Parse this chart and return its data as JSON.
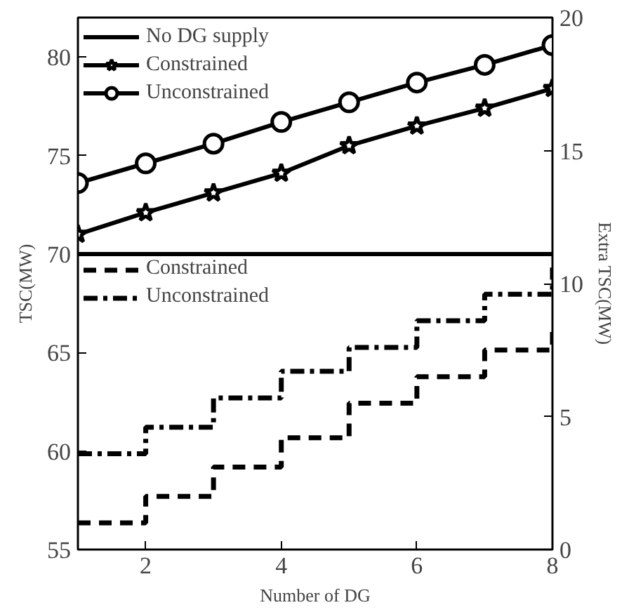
{
  "chart_data": {
    "type": "line",
    "xlabel": "Number of DG",
    "ylabel": "TSC(MW)",
    "y2label": "Extra TSC(MW)",
    "x": [
      1,
      2,
      3,
      4,
      5,
      6,
      7,
      8
    ],
    "xlim": [
      1,
      8
    ],
    "xticks": [
      2,
      4,
      6,
      8
    ],
    "ylim": [
      55,
      82
    ],
    "yticks": [
      55,
      60,
      65,
      70,
      75,
      80
    ],
    "y2lim": [
      0,
      20
    ],
    "y2ticks": [
      0,
      5,
      10,
      15,
      20
    ],
    "grid": false,
    "legend": "top left",
    "series": [
      {
        "name": "No DG supply",
        "color": "#000000",
        "marker": "none",
        "line_style": "solid",
        "values": [
          70,
          70,
          70,
          70,
          70,
          70,
          70,
          70
        ]
      },
      {
        "name": "Constrained",
        "color": "#000000",
        "marker": "star",
        "line_style": "solid",
        "values": [
          71.0,
          72.1,
          73.1,
          74.1,
          75.5,
          76.5,
          77.4,
          78.4
        ]
      },
      {
        "name": "Unconstrained",
        "color": "#000000",
        "marker": "circle",
        "line_style": "solid",
        "values": [
          73.6,
          74.6,
          75.6,
          76.7,
          77.7,
          78.7,
          79.6,
          80.6
        ]
      },
      {
        "name": "Constrained",
        "type": "step",
        "axis": "y2",
        "color": "#000000",
        "marker": "none",
        "line_style": "dashed",
        "values": [
          1.0,
          2.0,
          3.1,
          4.2,
          5.5,
          6.5,
          7.5,
          8.2
        ]
      },
      {
        "name": "Unconstrained",
        "type": "step",
        "axis": "y2",
        "color": "#000000",
        "marker": "none",
        "line_style": "dashdot",
        "values": [
          3.6,
          4.6,
          5.7,
          6.7,
          7.6,
          8.6,
          9.6,
          10.6
        ]
      }
    ]
  }
}
